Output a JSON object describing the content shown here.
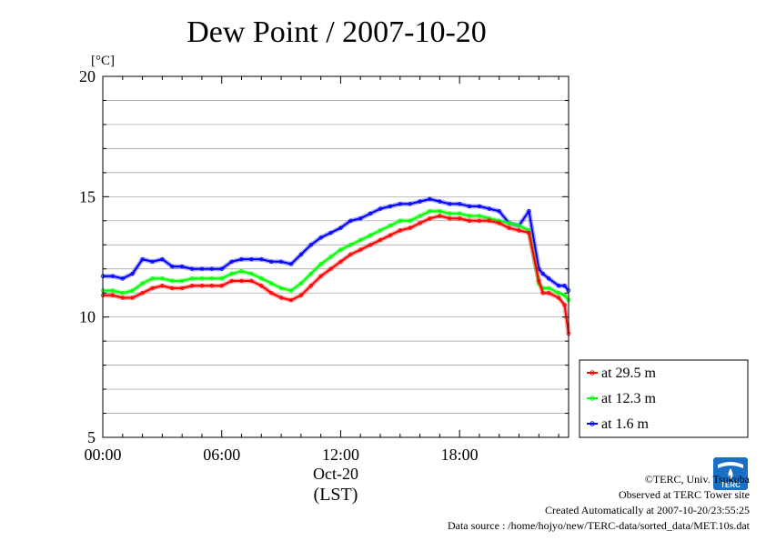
{
  "chart_data": {
    "type": "line",
    "title": "Dew Point / 2007-10-20",
    "ylabel": "[°C]",
    "xlabel": "(LST)",
    "x_date_label": "Oct-20",
    "ylim": [
      5,
      20
    ],
    "yticks": [
      "5",
      "10",
      "15",
      "20"
    ],
    "xlim_hours": [
      0,
      23.5
    ],
    "xticks": [
      {
        "hour": 0,
        "label": "00:00"
      },
      {
        "hour": 6,
        "label": "06:00"
      },
      {
        "hour": 12,
        "label": "12:00"
      },
      {
        "hour": 18,
        "label": "18:00"
      }
    ],
    "grid": true,
    "legend_position": "right",
    "x": [
      0,
      0.5,
      1,
      1.5,
      2,
      2.5,
      3,
      3.5,
      4,
      4.5,
      5,
      5.5,
      6,
      6.5,
      7,
      7.5,
      8,
      8.5,
      9,
      9.5,
      10,
      10.5,
      11,
      11.5,
      12,
      12.5,
      13,
      13.5,
      14,
      14.5,
      15,
      15.5,
      16,
      16.5,
      17,
      17.5,
      18,
      18.5,
      19,
      19.5,
      20,
      20.5,
      21,
      21.5,
      22,
      22.2,
      22.5,
      23,
      23.3,
      23.5
    ],
    "series": [
      {
        "name": "at 29.5 m",
        "color": "#ff0000",
        "values": [
          10.9,
          10.9,
          10.8,
          10.8,
          11.0,
          11.2,
          11.3,
          11.2,
          11.2,
          11.3,
          11.3,
          11.3,
          11.3,
          11.5,
          11.5,
          11.5,
          11.3,
          11.0,
          10.8,
          10.7,
          10.9,
          11.3,
          11.7,
          12.0,
          12.3,
          12.6,
          12.8,
          13.0,
          13.2,
          13.4,
          13.6,
          13.7,
          13.9,
          14.1,
          14.2,
          14.1,
          14.1,
          14.0,
          14.0,
          14.0,
          13.9,
          13.7,
          13.6,
          13.5,
          11.5,
          11.0,
          11.0,
          10.8,
          10.5,
          9.3
        ]
      },
      {
        "name": "at 12.3 m",
        "color": "#00ff00",
        "values": [
          11.1,
          11.1,
          11.0,
          11.1,
          11.4,
          11.6,
          11.6,
          11.5,
          11.5,
          11.6,
          11.6,
          11.6,
          11.6,
          11.8,
          11.9,
          11.8,
          11.6,
          11.4,
          11.2,
          11.1,
          11.4,
          11.8,
          12.2,
          12.5,
          12.8,
          13.0,
          13.2,
          13.4,
          13.6,
          13.8,
          14.0,
          14.0,
          14.2,
          14.4,
          14.4,
          14.3,
          14.3,
          14.2,
          14.2,
          14.1,
          14.0,
          13.9,
          13.8,
          13.6,
          11.4,
          11.2,
          11.2,
          11.0,
          10.9,
          10.7
        ]
      },
      {
        "name": "at 1.6 m",
        "color": "#0000ff",
        "values": [
          11.7,
          11.7,
          11.6,
          11.8,
          12.4,
          12.3,
          12.4,
          12.1,
          12.1,
          12.0,
          12.0,
          12.0,
          12.0,
          12.3,
          12.4,
          12.4,
          12.4,
          12.3,
          12.3,
          12.2,
          12.6,
          13.0,
          13.3,
          13.5,
          13.7,
          14.0,
          14.1,
          14.3,
          14.5,
          14.6,
          14.7,
          14.7,
          14.8,
          14.9,
          14.8,
          14.7,
          14.7,
          14.6,
          14.6,
          14.5,
          14.4,
          13.9,
          13.8,
          14.4,
          12.0,
          11.8,
          11.6,
          11.3,
          11.3,
          11.1
        ]
      }
    ]
  },
  "credits": {
    "copyright": "©TERC, Univ. Tsukuba",
    "site": "Observed at TERC Tower site",
    "created": "Created Automatically at 2007-10-20/23:55:25",
    "source": "Data source : /home/hojyo/new/TERC-data/sorted_data/MET.10s.dat"
  },
  "logo": {
    "text": "TERC",
    "color": "#1a6fc4",
    "icon": "terc-logo-icon"
  }
}
